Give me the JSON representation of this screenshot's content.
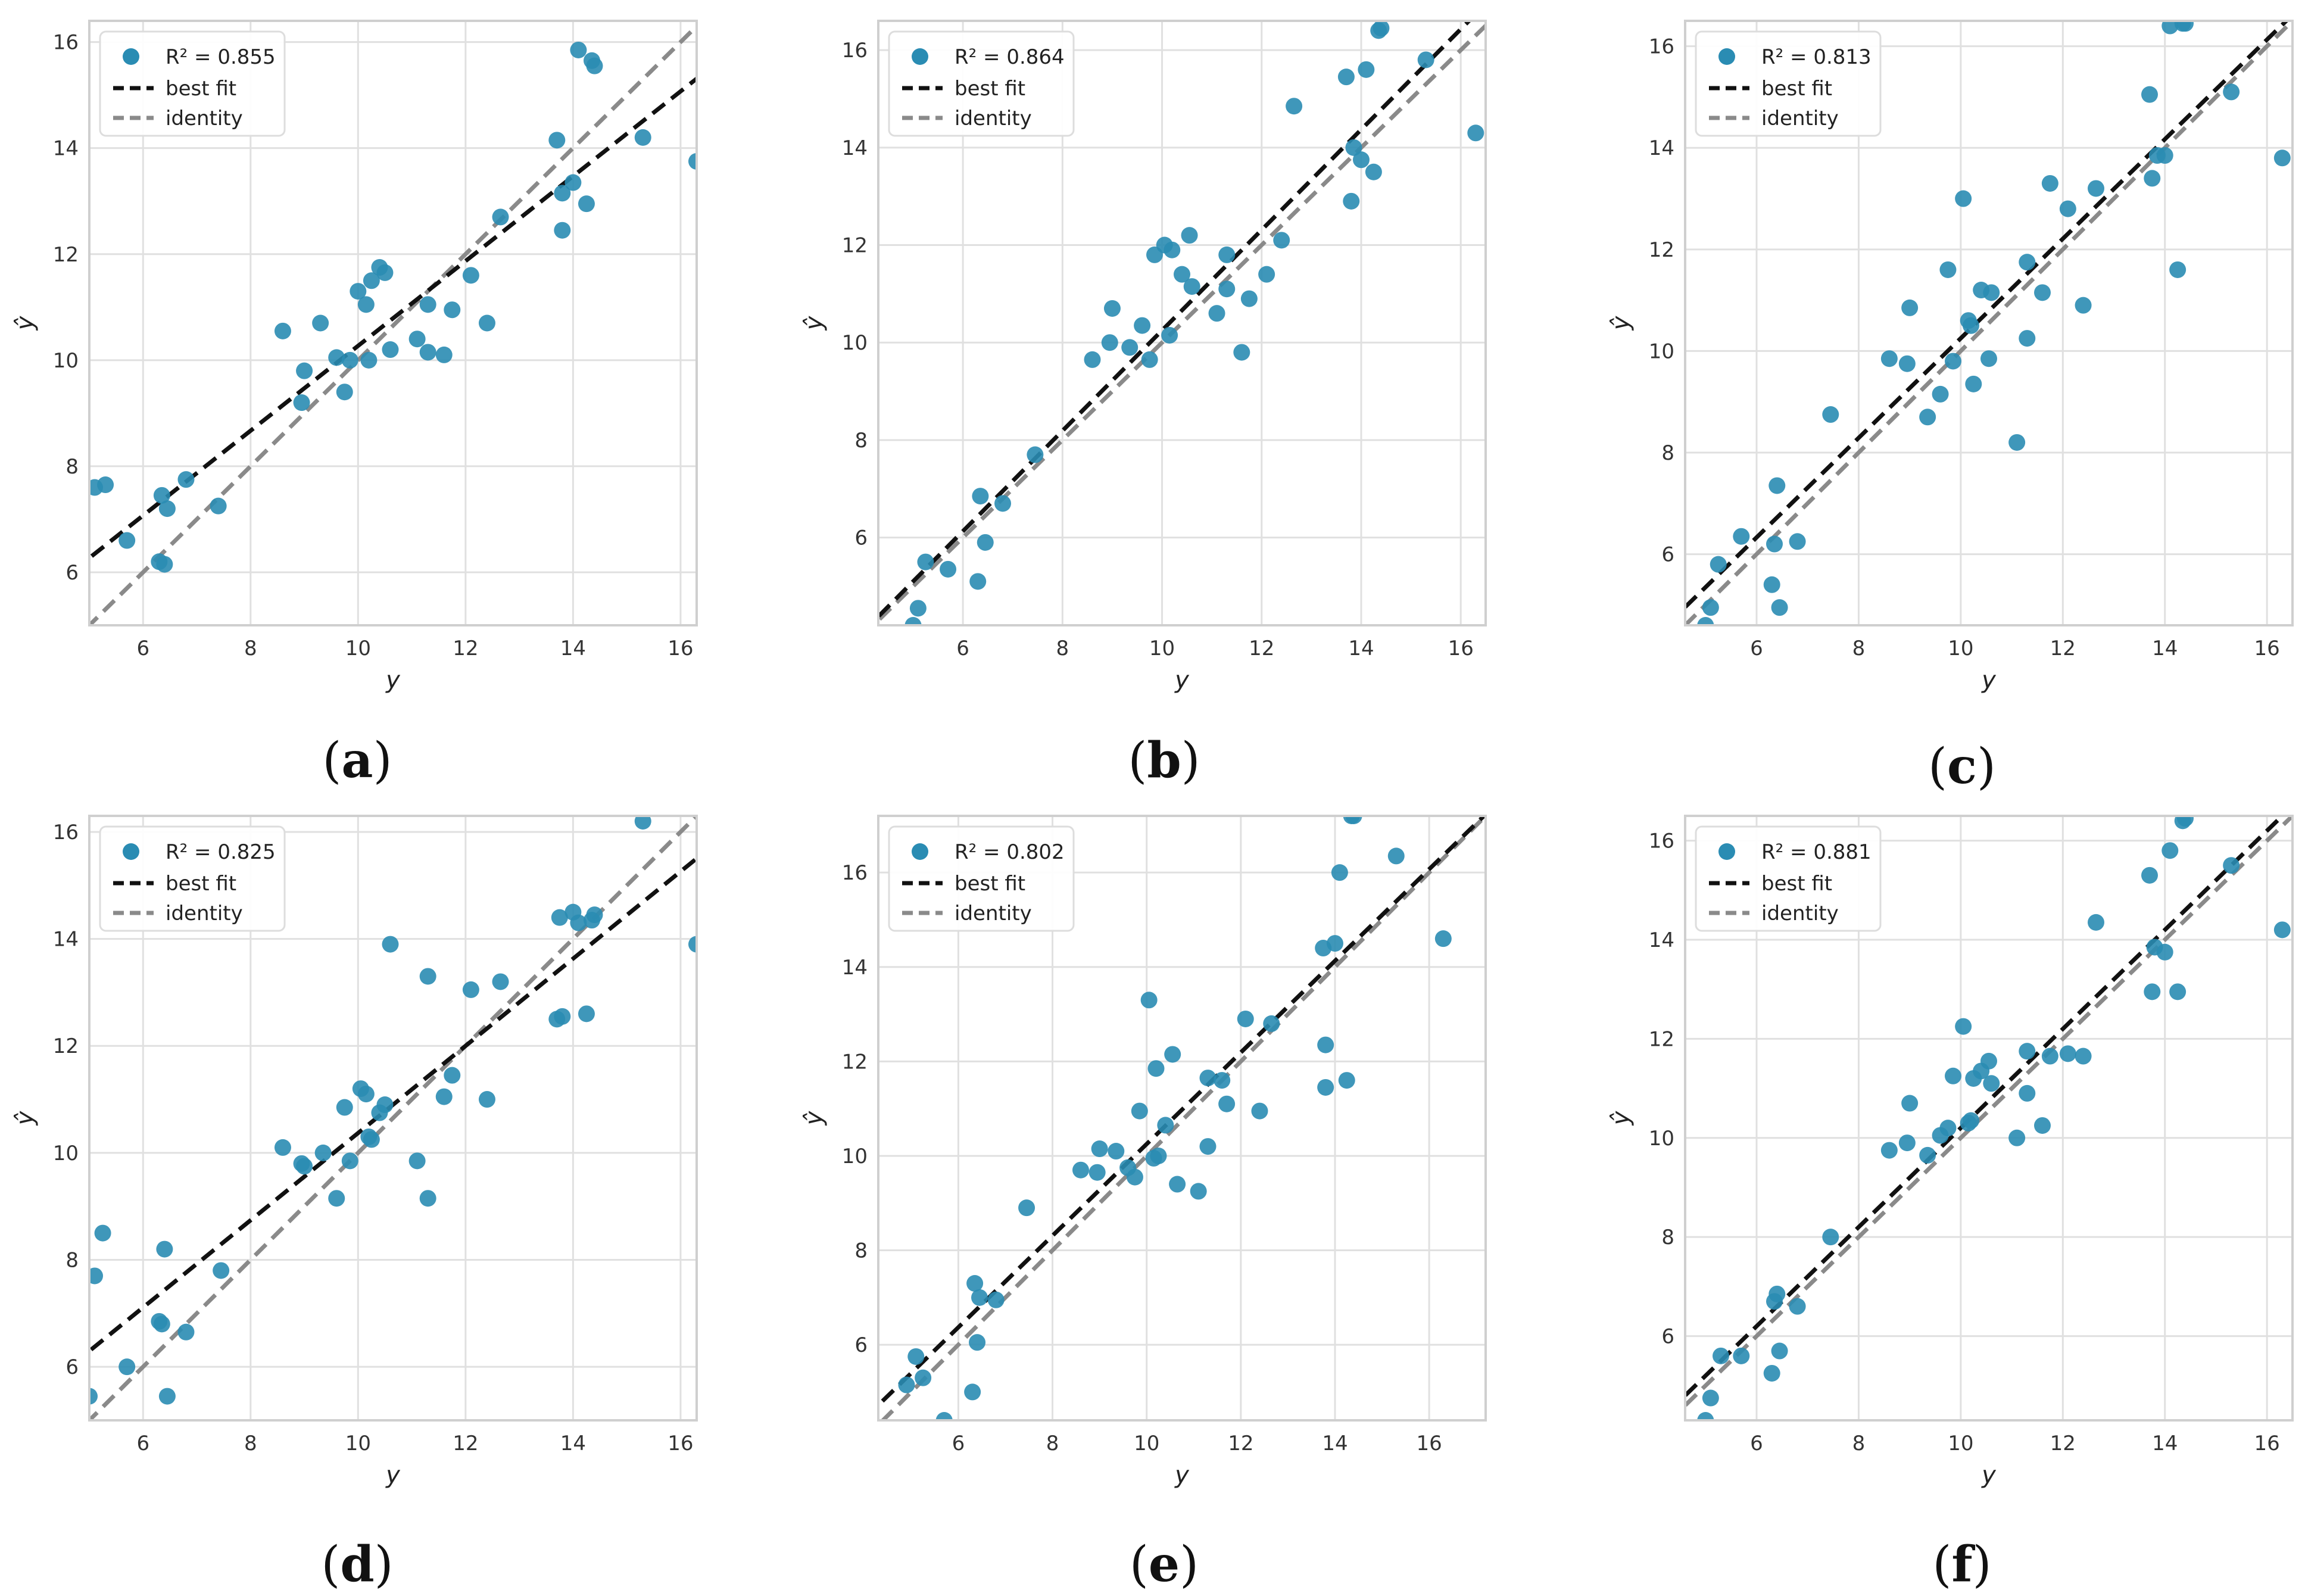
{
  "figure": {
    "background": "#ffffff",
    "plot_bg": "#ffffff",
    "grid_color": "#e0e0e0",
    "frame_color": "#cfcfcf",
    "point_color": "#2a8cb3",
    "best_fit_color": "#111111",
    "identity_color": "#8a8a8a"
  },
  "chart_data": [
    {
      "id": "a",
      "panel_label": {
        "open": "(",
        "letter": "a",
        "close": ")"
      },
      "type": "scatter",
      "xlabel": "y",
      "ylabel": "ŷ",
      "xlim": [
        5.0,
        16.3
      ],
      "ylim": [
        5.0,
        16.4
      ],
      "xticks": [
        6,
        8,
        10,
        12,
        14,
        16
      ],
      "yticks": [
        6,
        8,
        10,
        12,
        14,
        16
      ],
      "r2_label": "R² = 0.855",
      "legend": {
        "position": "top-left",
        "entries": [
          "R² = 0.855",
          "best fit",
          "identity"
        ]
      },
      "best_fit": {
        "slope": 0.8,
        "intercept": 2.27
      },
      "identity": {
        "slope": 1,
        "intercept": 0
      },
      "points": [
        [
          5.1,
          7.6
        ],
        [
          5.3,
          7.65
        ],
        [
          5.7,
          6.6
        ],
        [
          6.3,
          6.2
        ],
        [
          6.35,
          7.45
        ],
        [
          6.4,
          6.15
        ],
        [
          6.45,
          7.2
        ],
        [
          6.8,
          7.75
        ],
        [
          7.4,
          7.25
        ],
        [
          8.6,
          10.55
        ],
        [
          8.95,
          9.2
        ],
        [
          9.0,
          9.8
        ],
        [
          9.3,
          10.7
        ],
        [
          9.6,
          10.05
        ],
        [
          9.75,
          9.4
        ],
        [
          9.85,
          10.0
        ],
        [
          10.0,
          11.3
        ],
        [
          10.15,
          11.05
        ],
        [
          10.2,
          10.0
        ],
        [
          10.25,
          11.5
        ],
        [
          10.4,
          11.75
        ],
        [
          10.5,
          11.65
        ],
        [
          10.6,
          10.2
        ],
        [
          11.1,
          10.4
        ],
        [
          11.3,
          10.15
        ],
        [
          11.3,
          11.05
        ],
        [
          11.6,
          10.1
        ],
        [
          11.75,
          10.95
        ],
        [
          12.1,
          11.6
        ],
        [
          12.4,
          10.7
        ],
        [
          12.65,
          12.7
        ],
        [
          13.7,
          14.15
        ],
        [
          13.8,
          13.15
        ],
        [
          13.8,
          12.45
        ],
        [
          14.0,
          13.35
        ],
        [
          14.1,
          15.85
        ],
        [
          14.25,
          12.95
        ],
        [
          14.35,
          15.65
        ],
        [
          14.4,
          15.55
        ],
        [
          15.3,
          14.2
        ],
        [
          16.3,
          13.75
        ]
      ]
    },
    {
      "id": "b",
      "panel_label": {
        "open": "(",
        "letter": "b",
        "close": ")"
      },
      "type": "scatter",
      "xlabel": "y",
      "ylabel": "ŷ",
      "xlim": [
        4.3,
        16.5
      ],
      "ylim": [
        4.2,
        16.6
      ],
      "xticks": [
        6,
        8,
        10,
        12,
        14,
        16
      ],
      "yticks": [
        6,
        8,
        10,
        12,
        14,
        16
      ],
      "r2_label": "R² = 0.864",
      "legend": {
        "position": "top-left",
        "entries": [
          "R² = 0.864",
          "best fit",
          "identity"
        ]
      },
      "best_fit": {
        "slope": 1.03,
        "intercept": -0.05
      },
      "identity": {
        "slope": 1,
        "intercept": 0
      },
      "points": [
        [
          5.0,
          4.2
        ],
        [
          5.1,
          4.55
        ],
        [
          5.25,
          5.5
        ],
        [
          5.7,
          5.35
        ],
        [
          6.3,
          5.1
        ],
        [
          6.35,
          6.85
        ],
        [
          6.45,
          5.9
        ],
        [
          6.8,
          6.7
        ],
        [
          7.45,
          7.7
        ],
        [
          8.6,
          9.65
        ],
        [
          8.95,
          10.0
        ],
        [
          9.0,
          10.7
        ],
        [
          9.35,
          9.9
        ],
        [
          9.6,
          10.35
        ],
        [
          9.75,
          9.65
        ],
        [
          9.85,
          11.8
        ],
        [
          10.05,
          12.0
        ],
        [
          10.15,
          10.15
        ],
        [
          10.2,
          11.9
        ],
        [
          10.4,
          11.4
        ],
        [
          10.55,
          12.2
        ],
        [
          10.6,
          11.15
        ],
        [
          11.1,
          10.6
        ],
        [
          11.3,
          11.8
        ],
        [
          11.3,
          11.1
        ],
        [
          11.6,
          9.8
        ],
        [
          11.75,
          10.9
        ],
        [
          12.1,
          11.4
        ],
        [
          12.4,
          12.1
        ],
        [
          12.65,
          14.85
        ],
        [
          13.7,
          15.45
        ],
        [
          13.8,
          12.9
        ],
        [
          13.85,
          14.0
        ],
        [
          14.0,
          13.75
        ],
        [
          14.1,
          15.6
        ],
        [
          14.25,
          13.5
        ],
        [
          14.35,
          16.4
        ],
        [
          14.4,
          16.45
        ],
        [
          15.3,
          15.8
        ],
        [
          16.3,
          14.3
        ]
      ]
    },
    {
      "id": "c",
      "panel_label": {
        "open": "(",
        "letter": "c",
        "close": ")"
      },
      "type": "scatter",
      "xlabel": "y",
      "ylabel": "ŷ",
      "xlim": [
        4.6,
        16.5
      ],
      "ylim": [
        4.6,
        16.5
      ],
      "xticks": [
        6,
        8,
        10,
        12,
        14,
        16
      ],
      "yticks": [
        6,
        8,
        10,
        12,
        14,
        16
      ],
      "r2_label": "R² = 0.813",
      "legend": {
        "position": "top-left",
        "entries": [
          "R² = 0.813",
          "best fit",
          "identity"
        ]
      },
      "best_fit": {
        "slope": 0.98,
        "intercept": 0.45
      },
      "identity": {
        "slope": 1,
        "intercept": 0
      },
      "points": [
        [
          5.0,
          4.6
        ],
        [
          5.1,
          4.95
        ],
        [
          5.25,
          5.8
        ],
        [
          5.7,
          6.35
        ],
        [
          6.3,
          5.4
        ],
        [
          6.35,
          6.2
        ],
        [
          6.4,
          7.35
        ],
        [
          6.45,
          4.95
        ],
        [
          6.8,
          6.25
        ],
        [
          7.45,
          8.75
        ],
        [
          8.6,
          9.85
        ],
        [
          8.95,
          9.75
        ],
        [
          9.0,
          10.85
        ],
        [
          9.35,
          8.7
        ],
        [
          9.6,
          9.15
        ],
        [
          9.75,
          11.6
        ],
        [
          9.85,
          9.8
        ],
        [
          10.05,
          13.0
        ],
        [
          10.15,
          10.6
        ],
        [
          10.2,
          10.5
        ],
        [
          10.25,
          9.35
        ],
        [
          10.4,
          11.2
        ],
        [
          10.55,
          9.85
        ],
        [
          10.6,
          11.15
        ],
        [
          11.1,
          8.2
        ],
        [
          11.3,
          11.75
        ],
        [
          11.3,
          10.25
        ],
        [
          11.6,
          11.15
        ],
        [
          11.75,
          13.3
        ],
        [
          12.1,
          12.8
        ],
        [
          12.4,
          10.9
        ],
        [
          12.65,
          13.2
        ],
        [
          13.7,
          15.05
        ],
        [
          13.75,
          13.4
        ],
        [
          13.85,
          13.85
        ],
        [
          14.0,
          13.85
        ],
        [
          14.1,
          16.4
        ],
        [
          14.25,
          11.6
        ],
        [
          14.35,
          16.45
        ],
        [
          14.4,
          16.45
        ],
        [
          15.3,
          15.1
        ],
        [
          16.3,
          13.8
        ]
      ]
    },
    {
      "id": "d",
      "panel_label": {
        "open": "(",
        "letter": "d",
        "close": ")"
      },
      "type": "scatter",
      "xlabel": "y",
      "ylabel": "ŷ",
      "xlim": [
        5.0,
        16.3
      ],
      "ylim": [
        5.0,
        16.3
      ],
      "xticks": [
        6,
        8,
        10,
        12,
        14,
        16
      ],
      "yticks": [
        6,
        8,
        10,
        12,
        14,
        16
      ],
      "r2_label": "R² = 0.825",
      "legend": {
        "position": "top-left",
        "entries": [
          "R² = 0.825",
          "best fit",
          "identity"
        ]
      },
      "best_fit": {
        "slope": 0.815,
        "intercept": 2.22
      },
      "identity": {
        "slope": 1,
        "intercept": 0
      },
      "points": [
        [
          5.0,
          5.45
        ],
        [
          5.1,
          7.7
        ],
        [
          5.25,
          8.5
        ],
        [
          5.7,
          6.0
        ],
        [
          6.3,
          6.85
        ],
        [
          6.35,
          6.8
        ],
        [
          6.4,
          8.2
        ],
        [
          6.45,
          5.45
        ],
        [
          6.8,
          6.65
        ],
        [
          7.45,
          7.8
        ],
        [
          8.6,
          10.1
        ],
        [
          8.95,
          9.8
        ],
        [
          9.0,
          9.75
        ],
        [
          9.35,
          10.0
        ],
        [
          9.6,
          9.15
        ],
        [
          9.75,
          10.85
        ],
        [
          9.85,
          9.85
        ],
        [
          10.05,
          11.2
        ],
        [
          10.15,
          11.1
        ],
        [
          10.2,
          10.3
        ],
        [
          10.25,
          10.25
        ],
        [
          10.4,
          10.75
        ],
        [
          10.5,
          10.9
        ],
        [
          10.6,
          13.9
        ],
        [
          11.1,
          9.85
        ],
        [
          11.3,
          13.3
        ],
        [
          11.3,
          9.15
        ],
        [
          11.6,
          11.05
        ],
        [
          11.75,
          11.45
        ],
        [
          12.1,
          13.05
        ],
        [
          12.4,
          11.0
        ],
        [
          12.65,
          13.2
        ],
        [
          13.7,
          12.5
        ],
        [
          13.75,
          14.4
        ],
        [
          13.8,
          12.55
        ],
        [
          14.0,
          14.5
        ],
        [
          14.1,
          14.3
        ],
        [
          14.25,
          12.6
        ],
        [
          14.35,
          14.35
        ],
        [
          14.4,
          14.45
        ],
        [
          15.3,
          16.2
        ],
        [
          16.3,
          13.9
        ]
      ]
    },
    {
      "id": "e",
      "panel_label": {
        "open": "(",
        "letter": "e",
        "close": ")"
      },
      "type": "scatter",
      "xlabel": "y",
      "ylabel": "ŷ",
      "xlim": [
        4.3,
        17.2
      ],
      "ylim": [
        4.4,
        17.2
      ],
      "xticks": [
        6,
        8,
        10,
        12,
        14,
        16
      ],
      "yticks": [
        6,
        8,
        10,
        12,
        14,
        16
      ],
      "r2_label": "R² = 0.802",
      "legend": {
        "position": "top-left",
        "entries": [
          "R² = 0.802",
          "best fit",
          "identity"
        ]
      },
      "best_fit": {
        "slope": 0.97,
        "intercept": 0.55
      },
      "identity": {
        "slope": 1,
        "intercept": 0
      },
      "points": [
        [
          4.9,
          5.15
        ],
        [
          5.1,
          5.75
        ],
        [
          5.25,
          5.3
        ],
        [
          5.7,
          4.4
        ],
        [
          6.3,
          5.0
        ],
        [
          6.35,
          7.3
        ],
        [
          6.4,
          6.05
        ],
        [
          6.45,
          7.0
        ],
        [
          6.8,
          6.95
        ],
        [
          7.45,
          8.9
        ],
        [
          8.6,
          9.7
        ],
        [
          8.95,
          9.65
        ],
        [
          9.0,
          10.15
        ],
        [
          9.35,
          10.1
        ],
        [
          9.6,
          9.75
        ],
        [
          9.75,
          9.55
        ],
        [
          9.85,
          10.95
        ],
        [
          10.05,
          13.3
        ],
        [
          10.15,
          9.95
        ],
        [
          10.2,
          11.85
        ],
        [
          10.25,
          10.0
        ],
        [
          10.4,
          10.65
        ],
        [
          10.55,
          12.15
        ],
        [
          10.65,
          9.4
        ],
        [
          11.1,
          9.25
        ],
        [
          11.3,
          10.2
        ],
        [
          11.3,
          11.65
        ],
        [
          11.6,
          11.6
        ],
        [
          11.7,
          11.1
        ],
        [
          12.1,
          12.9
        ],
        [
          12.4,
          10.95
        ],
        [
          12.65,
          12.8
        ],
        [
          13.75,
          14.4
        ],
        [
          13.8,
          11.45
        ],
        [
          13.8,
          12.35
        ],
        [
          14.0,
          14.5
        ],
        [
          14.1,
          16.0
        ],
        [
          14.25,
          11.6
        ],
        [
          14.35,
          17.2
        ],
        [
          14.4,
          17.2
        ],
        [
          15.3,
          16.35
        ],
        [
          16.3,
          14.6
        ]
      ]
    },
    {
      "id": "f",
      "panel_label": {
        "open": "(",
        "letter": "f",
        "close": ")"
      },
      "type": "scatter",
      "xlabel": "y",
      "ylabel": "ŷ",
      "xlim": [
        4.6,
        16.5
      ],
      "ylim": [
        4.3,
        16.5
      ],
      "xticks": [
        6,
        8,
        10,
        12,
        14,
        16
      ],
      "yticks": [
        6,
        8,
        10,
        12,
        14,
        16
      ],
      "r2_label": "R² = 0.881",
      "legend": {
        "position": "top-left",
        "entries": [
          "R² = 0.881",
          "best fit",
          "identity"
        ]
      },
      "best_fit": {
        "slope": 1.0,
        "intercept": 0.2
      },
      "identity": {
        "slope": 1,
        "intercept": 0
      },
      "points": [
        [
          5.0,
          4.3
        ],
        [
          5.1,
          4.75
        ],
        [
          5.3,
          5.6
        ],
        [
          5.7,
          5.6
        ],
        [
          6.3,
          5.25
        ],
        [
          6.35,
          6.7
        ],
        [
          6.4,
          6.85
        ],
        [
          6.45,
          5.7
        ],
        [
          6.8,
          6.6
        ],
        [
          7.45,
          8.0
        ],
        [
          8.6,
          9.75
        ],
        [
          8.95,
          9.9
        ],
        [
          9.0,
          10.7
        ],
        [
          9.35,
          9.65
        ],
        [
          9.6,
          10.05
        ],
        [
          9.75,
          10.2
        ],
        [
          9.85,
          11.25
        ],
        [
          10.05,
          12.25
        ],
        [
          10.15,
          10.3
        ],
        [
          10.2,
          10.35
        ],
        [
          10.25,
          11.2
        ],
        [
          10.4,
          11.35
        ],
        [
          10.55,
          11.55
        ],
        [
          10.6,
          11.1
        ],
        [
          11.1,
          10.0
        ],
        [
          11.3,
          10.9
        ],
        [
          11.3,
          11.75
        ],
        [
          11.6,
          10.25
        ],
        [
          11.75,
          11.65
        ],
        [
          12.1,
          11.7
        ],
        [
          12.4,
          11.65
        ],
        [
          12.65,
          14.35
        ],
        [
          13.7,
          15.3
        ],
        [
          13.75,
          12.95
        ],
        [
          13.8,
          13.85
        ],
        [
          14.0,
          13.75
        ],
        [
          14.1,
          15.8
        ],
        [
          14.25,
          12.95
        ],
        [
          14.35,
          16.4
        ],
        [
          14.4,
          16.45
        ],
        [
          15.3,
          15.5
        ],
        [
          16.3,
          14.2
        ]
      ]
    }
  ]
}
